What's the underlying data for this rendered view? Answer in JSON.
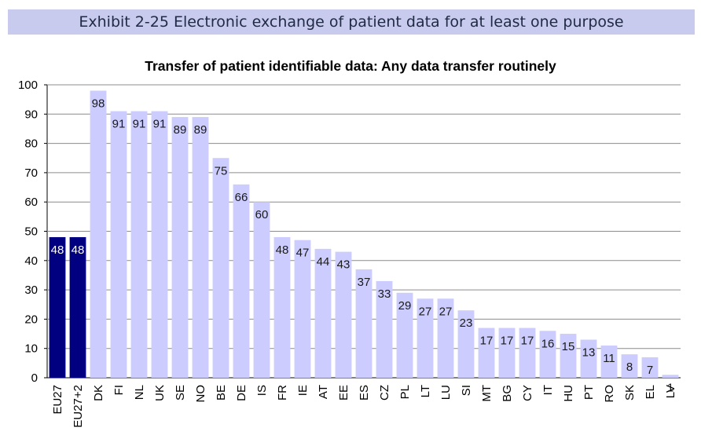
{
  "exhibit_title": "Exhibit 2-25 Electronic exchange of patient data for at least one purpose",
  "chart_data": {
    "type": "bar",
    "title": "Transfer of patient identifiable data: Any data transfer routinely",
    "xlabel": "",
    "ylabel": "",
    "ylim": [
      0,
      100
    ],
    "yticks": [
      0,
      10,
      20,
      30,
      40,
      50,
      60,
      70,
      80,
      90,
      100
    ],
    "grid": true,
    "categories": [
      "EU27",
      "EU27+2",
      "DK",
      "FI",
      "NL",
      "UK",
      "SE",
      "NO",
      "BE",
      "DE",
      "IS",
      "FR",
      "IE",
      "AT",
      "EE",
      "ES",
      "CZ",
      "PL",
      "LT",
      "LU",
      "SI",
      "MT",
      "BG",
      "CY",
      "IT",
      "HU",
      "PT",
      "RO",
      "SK",
      "EL",
      "LV"
    ],
    "values": [
      48,
      48,
      98,
      91,
      91,
      91,
      89,
      89,
      75,
      66,
      60,
      48,
      47,
      44,
      43,
      37,
      33,
      29,
      27,
      27,
      23,
      17,
      17,
      17,
      16,
      15,
      13,
      11,
      8,
      7,
      1
    ],
    "highlight_categories": [
      "EU27",
      "EU27+2"
    ],
    "colors": {
      "bar": "#ccccff",
      "highlight_bar": "#000080",
      "label": "#1a1a1a",
      "highlight_label": "#ffffff",
      "grid": "#8c8c8c"
    }
  }
}
